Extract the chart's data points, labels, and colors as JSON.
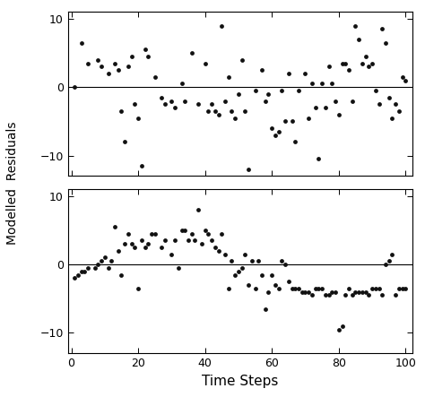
{
  "top_x": [
    1,
    3,
    5,
    8,
    9,
    11,
    13,
    14,
    15,
    16,
    17,
    18,
    19,
    20,
    21,
    22,
    23,
    25,
    27,
    28,
    30,
    31,
    33,
    34,
    36,
    38,
    40,
    41,
    42,
    43,
    44,
    45,
    46,
    47,
    48,
    49,
    50,
    51,
    52,
    53,
    55,
    57,
    58,
    59,
    60,
    61,
    62,
    63,
    64,
    65,
    66,
    67,
    68,
    70,
    71,
    72,
    73,
    74,
    75,
    76,
    77,
    78,
    79,
    80,
    81,
    82,
    83,
    84,
    85,
    86,
    87,
    88,
    89,
    90,
    91,
    92,
    93,
    94,
    95,
    96,
    97,
    98,
    99,
    100
  ],
  "top_y": [
    0.0,
    6.5,
    3.5,
    4.0,
    3.0,
    2.0,
    3.5,
    2.5,
    -3.5,
    -8.0,
    3.0,
    4.5,
    -2.5,
    -4.5,
    -11.5,
    5.5,
    4.5,
    1.5,
    -1.5,
    -2.5,
    -2.0,
    -3.0,
    0.5,
    -2.0,
    5.0,
    -2.5,
    3.5,
    -3.5,
    -2.5,
    -3.5,
    -4.0,
    9.0,
    -2.0,
    1.5,
    -3.5,
    -4.5,
    -1.0,
    4.0,
    -3.5,
    -12.0,
    -0.5,
    2.5,
    -2.0,
    -1.0,
    -6.0,
    -7.0,
    -6.5,
    -0.5,
    -5.0,
    2.0,
    -5.0,
    -8.0,
    -0.5,
    2.0,
    -4.5,
    0.5,
    -3.0,
    -10.5,
    0.5,
    -3.0,
    3.0,
    0.5,
    -2.0,
    -4.0,
    3.5,
    3.5,
    2.5,
    -2.0,
    9.0,
    7.0,
    3.5,
    4.5,
    3.0,
    3.5,
    -0.5,
    -2.5,
    8.5,
    6.5,
    -1.5,
    -4.5,
    -2.5,
    -3.5,
    1.5,
    1.0
  ],
  "bot_x": [
    1,
    2,
    3,
    4,
    5,
    7,
    8,
    9,
    10,
    11,
    12,
    13,
    14,
    15,
    16,
    17,
    18,
    19,
    20,
    21,
    22,
    23,
    24,
    25,
    27,
    28,
    30,
    31,
    32,
    33,
    34,
    35,
    36,
    37,
    38,
    39,
    40,
    41,
    42,
    43,
    44,
    45,
    46,
    47,
    48,
    49,
    50,
    51,
    52,
    53,
    54,
    55,
    56,
    57,
    58,
    59,
    60,
    61,
    62,
    63,
    64,
    65,
    66,
    67,
    68,
    69,
    70,
    71,
    72,
    73,
    74,
    75,
    76,
    77,
    78,
    79,
    80,
    81,
    82,
    83,
    84,
    85,
    86,
    87,
    88,
    89,
    90,
    91,
    92,
    93,
    94,
    95,
    96,
    97,
    98,
    99,
    100
  ],
  "bot_y": [
    -2.0,
    -1.5,
    -1.0,
    -1.0,
    -0.5,
    -0.5,
    0.0,
    0.5,
    1.0,
    -0.5,
    0.5,
    5.5,
    2.0,
    -1.5,
    3.0,
    4.5,
    3.0,
    2.5,
    -3.5,
    3.5,
    2.5,
    3.0,
    4.5,
    4.5,
    2.5,
    3.5,
    1.5,
    3.5,
    -0.5,
    5.0,
    5.0,
    3.5,
    4.5,
    3.5,
    8.0,
    3.0,
    5.0,
    4.5,
    3.5,
    2.5,
    2.0,
    4.5,
    1.5,
    -3.5,
    0.5,
    -1.5,
    -1.0,
    -0.5,
    1.5,
    -3.0,
    0.5,
    -3.5,
    0.5,
    -1.5,
    -6.5,
    -4.0,
    -1.5,
    -3.0,
    -3.5,
    0.5,
    0.0,
    -2.5,
    -3.5,
    -3.5,
    -3.5,
    -4.0,
    -4.0,
    -4.0,
    -4.5,
    -3.5,
    -3.5,
    -3.5,
    -4.5,
    -4.5,
    -4.0,
    -4.0,
    -9.5,
    -9.0,
    -4.5,
    -3.5,
    -4.5,
    -4.0,
    -4.0,
    -4.0,
    -4.0,
    -4.5,
    -3.5,
    -3.5,
    -3.5,
    -4.5,
    0.0,
    0.5,
    1.5,
    -4.5,
    -3.5,
    -3.5,
    -3.5
  ],
  "ylabel": "Modelled  Residuals",
  "xlabel": "Time Steps",
  "ylim": [
    -13,
    11
  ],
  "xlim": [
    -1,
    102
  ],
  "yticks": [
    -10,
    0,
    10
  ],
  "xticks": [
    0,
    20,
    40,
    60,
    80,
    100
  ],
  "dot_color": "#111111",
  "dot_size": 12,
  "line_color": "#000000",
  "bg_color": "#ffffff",
  "tick_fontsize": 9,
  "label_fontsize": 10,
  "xlabel_fontsize": 11
}
